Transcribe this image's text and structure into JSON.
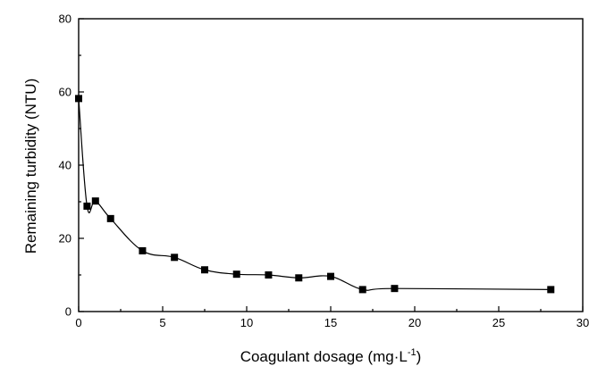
{
  "chart_data": {
    "type": "scatter",
    "title": "",
    "xlabel_main": "Coagulant dosage (mg·L",
    "xlabel_sup": "-1",
    "xlabel_tail": ")",
    "ylabel": "Remaining turbidity (NTU)",
    "xlim": [
      0,
      30
    ],
    "ylim": [
      0,
      80
    ],
    "xticks": [
      0,
      5,
      10,
      15,
      20,
      25,
      30
    ],
    "yticks": [
      0,
      20,
      40,
      60,
      80
    ],
    "grid": false,
    "series": [
      {
        "marker": "square",
        "connected": "smooth-line",
        "color": "#000000",
        "x": [
          0,
          0.5,
          1.0,
          1.9,
          3.8,
          5.7,
          7.5,
          9.4,
          11.3,
          13.1,
          15.0,
          16.9,
          18.8,
          28.1
        ],
        "y": [
          58.2,
          28.8,
          30.2,
          25.4,
          16.6,
          14.8,
          11.4,
          10.2,
          10.0,
          9.2,
          9.6,
          6.0,
          6.3,
          6.0
        ]
      }
    ]
  }
}
